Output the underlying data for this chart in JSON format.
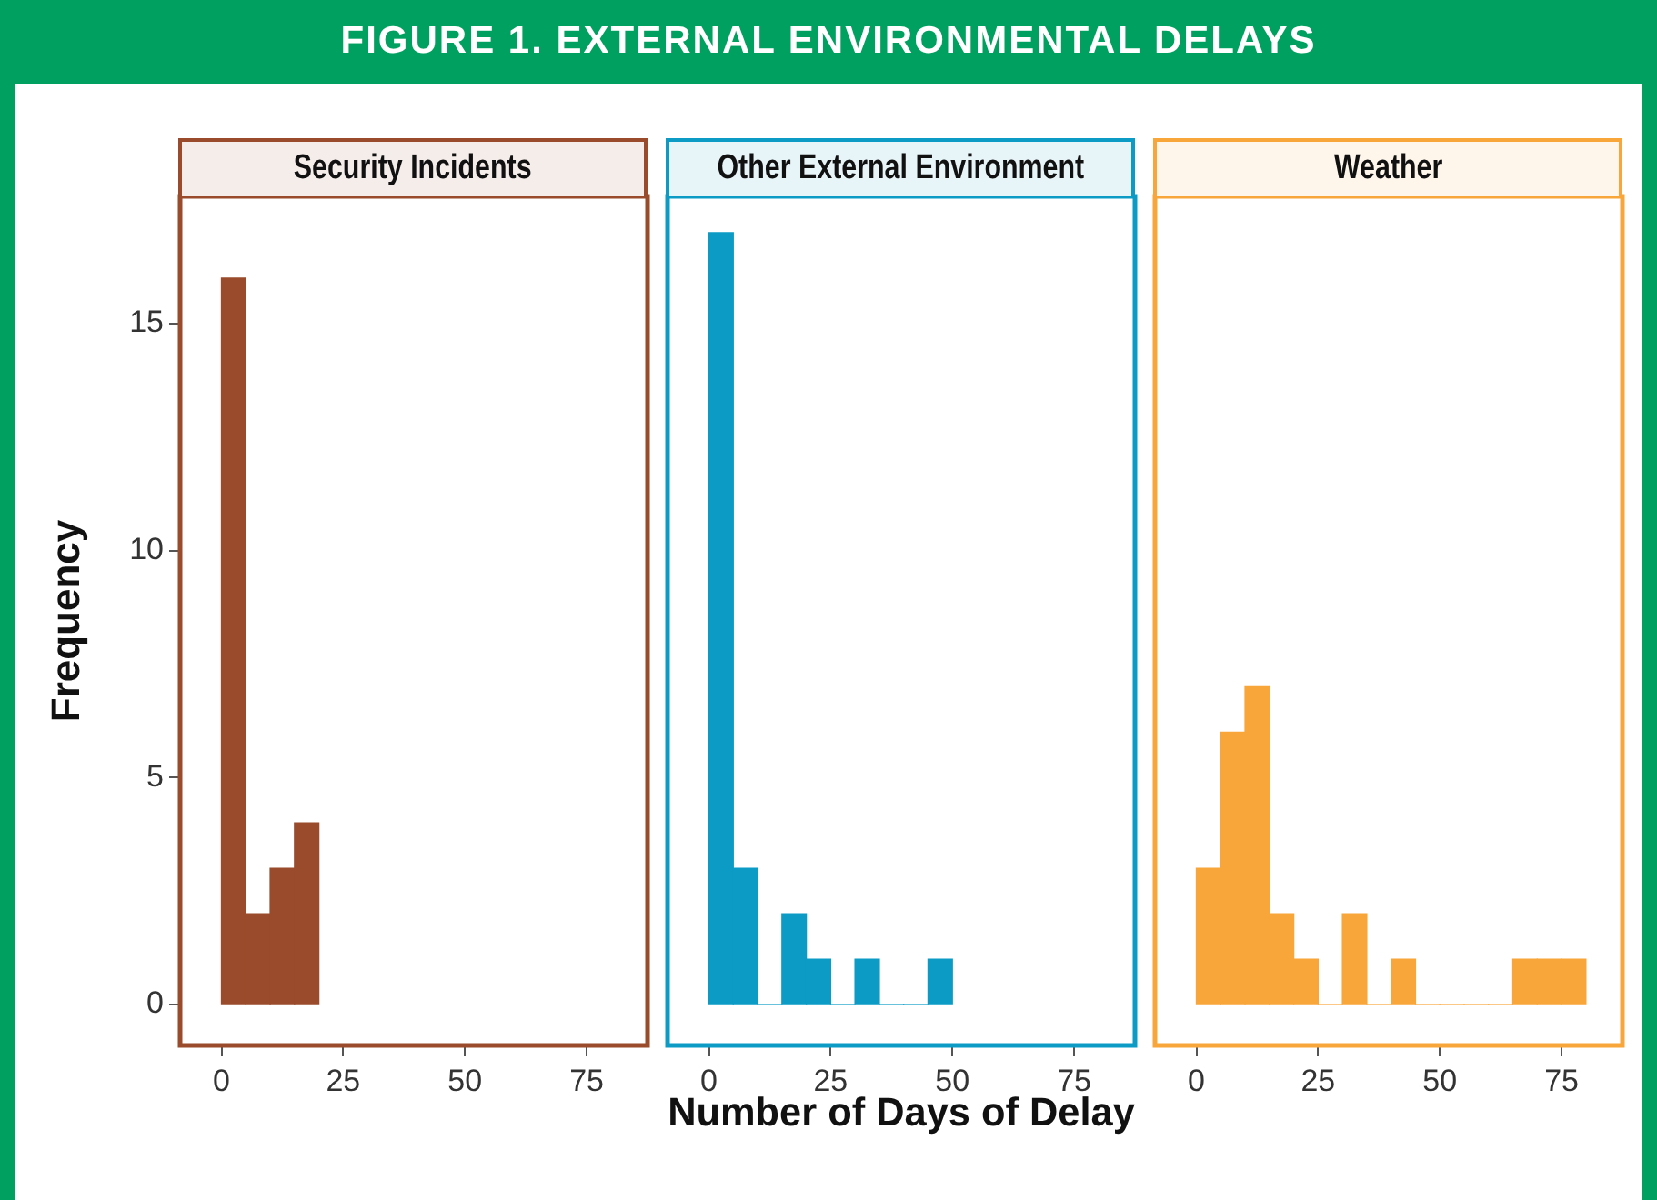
{
  "chart_data": [
    {
      "type": "histogram",
      "title": "Security Incidents",
      "bins": [
        0,
        5,
        10,
        15,
        20
      ],
      "values": [
        16,
        2,
        3,
        4
      ],
      "color": "#994b2b",
      "xlim": [
        -8.5,
        87.5
      ],
      "xticks": [
        0,
        25,
        50,
        75
      ],
      "ylim": [
        -0.9,
        17.8
      ],
      "yticks": [
        0,
        5,
        10,
        15
      ],
      "ylabel": "Frequency",
      "grid": false,
      "annotations": [
        "FIGURE 1. EXTERNAL ENVIRONMENTAL DELAYS"
      ]
    },
    {
      "type": "histogram",
      "title": "Other External Environment",
      "bins": [
        0,
        5,
        10,
        15,
        20,
        25,
        30,
        35,
        40,
        45,
        50
      ],
      "values": [
        17,
        3,
        0,
        2,
        1,
        0,
        1,
        0,
        0,
        1
      ],
      "color": "#0b9bc5",
      "xlim": [
        -8.5,
        87.5
      ],
      "xticks": [
        0,
        25,
        50,
        75
      ],
      "ylim": [
        -0.9,
        17.8
      ],
      "yticks": [
        0,
        5,
        10,
        15
      ],
      "xlabel": "Number of Days of Delay",
      "grid": false,
      "tick_labels": "x"
    },
    {
      "type": "histogram",
      "title": "Weather",
      "bins": [
        0,
        5,
        10,
        15,
        20,
        25,
        30,
        35,
        40,
        45,
        50,
        55,
        60,
        65,
        70,
        75,
        80
      ],
      "values": [
        3,
        6,
        7,
        2,
        1,
        0,
        2,
        0,
        1,
        0,
        0,
        0,
        0,
        1,
        1,
        1
      ],
      "color": "#f8a63a",
      "xlim": [
        -8.5,
        87.5
      ],
      "xticks": [
        0,
        25,
        50,
        75
      ],
      "ylim": [
        -0.9,
        17.8
      ],
      "yticks": [
        0,
        5,
        10,
        15
      ],
      "grid": false,
      "tick_labels": "x"
    }
  ]
}
